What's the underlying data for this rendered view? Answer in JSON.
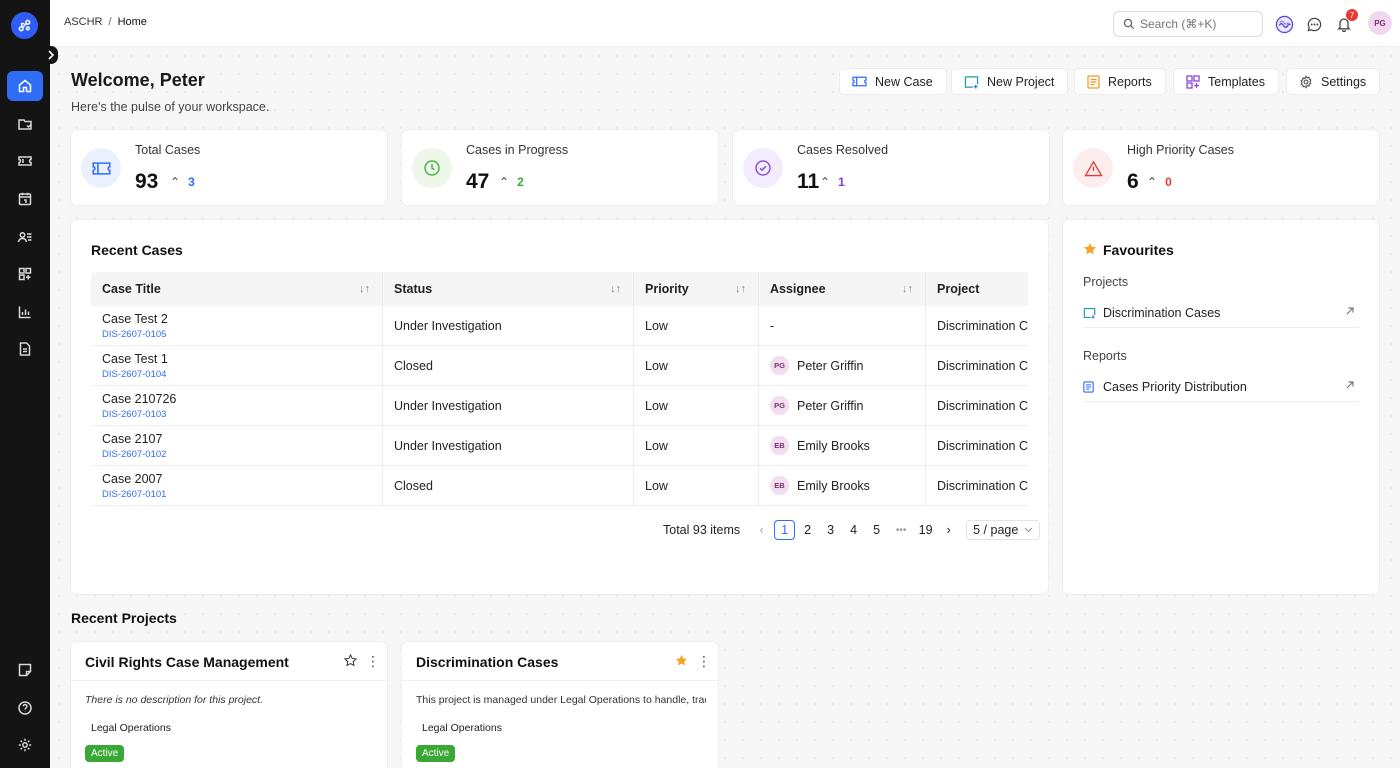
{
  "topbar": {
    "breadcrumb": [
      "ASCHR",
      "Home"
    ],
    "breadcrumb_sep": "/",
    "search_placeholder": "Search (⌘+K)",
    "notification_count": "7",
    "user_initials": "PG"
  },
  "header": {
    "welcome": "Welcome, Peter",
    "subtitle": "Here's the pulse of your workspace."
  },
  "quick_actions": [
    {
      "label": "New Case",
      "icon": "ticket-icon"
    },
    {
      "label": "New Project",
      "icon": "project-add-icon"
    },
    {
      "label": "Reports",
      "icon": "report-icon"
    },
    {
      "label": "Templates",
      "icon": "template-icon"
    },
    {
      "label": "Settings",
      "icon": "gear-icon"
    }
  ],
  "stats": [
    {
      "label": "Total Cases",
      "value": "93",
      "delta": "3",
      "color": "#2f6df6",
      "bg": "#eaf1fd",
      "icon": "ticket-icon"
    },
    {
      "label": "Cases in Progress",
      "value": "47",
      "delta": "2",
      "color": "#3aa834",
      "bg": "#eef8ea",
      "icon": "clock-icon"
    },
    {
      "label": "Cases Resolved",
      "value": "11",
      "delta": "1",
      "color": "#7b3fd6",
      "bg": "#f2ecfc",
      "icon": "check-circle-icon"
    },
    {
      "label": "High Priority Cases",
      "value": "6",
      "delta": "0",
      "color": "#e53935",
      "bg": "#fdeeee",
      "icon": "warning-icon"
    }
  ],
  "recent_cases": {
    "title": "Recent Cases",
    "columns": [
      "Case Title",
      "Status",
      "Priority",
      "Assignee",
      "Project"
    ],
    "rows": [
      {
        "title": "Case Test 2",
        "id": "DIS-2607-0105",
        "status": "Under Investigation",
        "priority": "Low",
        "assignee": "-",
        "initials": "",
        "project": "Discrimination Cases"
      },
      {
        "title": "Case Test 1",
        "id": "DIS-2607-0104",
        "status": "Closed",
        "priority": "Low",
        "assignee": "Peter Griffin",
        "initials": "PG",
        "project": "Discrimination Cases"
      },
      {
        "title": "Case 210726",
        "id": "DIS-2607-0103",
        "status": "Under Investigation",
        "priority": "Low",
        "assignee": "Peter Griffin",
        "initials": "PG",
        "project": "Discrimination Cases"
      },
      {
        "title": "Case 2107",
        "id": "DIS-2607-0102",
        "status": "Under Investigation",
        "priority": "Low",
        "assignee": "Emily Brooks",
        "initials": "EB",
        "project": "Discrimination Cases"
      },
      {
        "title": "Case 2007",
        "id": "DIS-2607-0101",
        "status": "Closed",
        "priority": "Low",
        "assignee": "Emily Brooks",
        "initials": "EB",
        "project": "Discrimination Cases"
      }
    ],
    "pagination": {
      "total": "Total 93 items",
      "pages": [
        "1",
        "2",
        "3",
        "4",
        "5"
      ],
      "ellipsis": "•••",
      "last": "19",
      "current": "1",
      "page_size": "5 / page"
    }
  },
  "favourites": {
    "title": "Favourites",
    "projects_label": "Projects",
    "projects": [
      "Discrimination Cases"
    ],
    "reports_label": "Reports",
    "reports": [
      "Cases Priority Distribution"
    ]
  },
  "recent_projects": {
    "title": "Recent Projects",
    "items": [
      {
        "name": "Civil Rights Case Management",
        "description": "There is no description for this project.",
        "tag": "Legal Operations",
        "status": "Active",
        "starred": false
      },
      {
        "name": "Discrimination Cases",
        "description": "This project is managed under Legal Operations to handle, track, and resolve discrimination cases.",
        "tag": "Legal Operations",
        "status": "Active",
        "starred": true
      }
    ]
  },
  "colors": {
    "accent": "#2f6df6",
    "active_green": "#3aa834",
    "star": "#f4a623",
    "rail": "#141414"
  }
}
